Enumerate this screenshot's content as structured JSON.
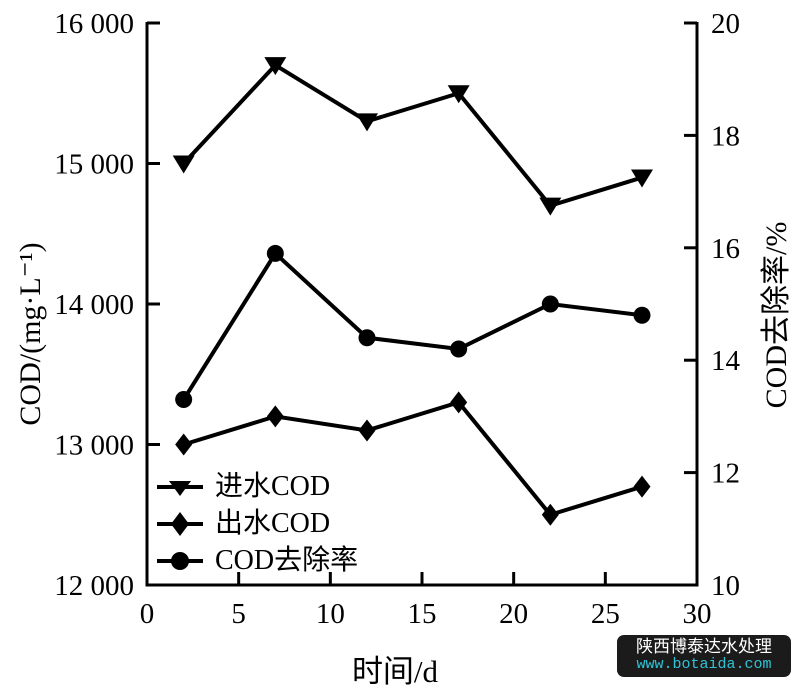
{
  "figure": {
    "background": "#ffffff",
    "ink_color": "#000000"
  },
  "chart_data": {
    "type": "line",
    "title": "",
    "grid": false,
    "x": [
      2,
      7,
      12,
      17,
      22,
      27
    ],
    "series": [
      {
        "name": "进水COD",
        "axis": "left",
        "marker": "triangle-down",
        "color": "#000000",
        "values": [
          15000,
          15700,
          15300,
          15500,
          14700,
          14900
        ]
      },
      {
        "name": "出水COD",
        "axis": "left",
        "marker": "diamond",
        "color": "#000000",
        "values": [
          13000,
          13200,
          13100,
          13300,
          12500,
          12700
        ]
      },
      {
        "name": "COD去除率",
        "axis": "right",
        "marker": "circle",
        "color": "#000000",
        "values": [
          13.3,
          15.9,
          14.4,
          14.2,
          15.0,
          14.8
        ]
      }
    ],
    "x_axis": {
      "label": "时间/d",
      "lim": [
        0,
        30
      ],
      "ticks": [
        0,
        5,
        10,
        15,
        20,
        25,
        30
      ],
      "tick_labels": [
        "0",
        "5",
        "10",
        "15",
        "20",
        "25",
        "30"
      ]
    },
    "y_axis_left": {
      "label": "COD/(mg·L⁻¹)",
      "lim": [
        12000,
        16000
      ],
      "ticks": [
        12000,
        13000,
        14000,
        15000,
        16000
      ],
      "tick_labels": [
        "12 000",
        "13 000",
        "14 000",
        "15 000",
        "16 000"
      ]
    },
    "y_axis_right": {
      "label": "COD去除率/%",
      "lim": [
        10,
        20
      ],
      "ticks": [
        10,
        12,
        14,
        16,
        18,
        20
      ],
      "tick_labels": [
        "10",
        "12",
        "14",
        "16",
        "18",
        "20"
      ]
    },
    "legend": {
      "position": "lower-left",
      "entries": [
        "进水COD",
        "出水COD",
        "COD去除率"
      ]
    }
  },
  "watermark": {
    "line1": "陕西博泰达水处理",
    "line2": "www.botaida.com",
    "bg_color": "#1b1b1b",
    "line1_color": "#ffffff",
    "line2_color": "#2ec4d6"
  }
}
